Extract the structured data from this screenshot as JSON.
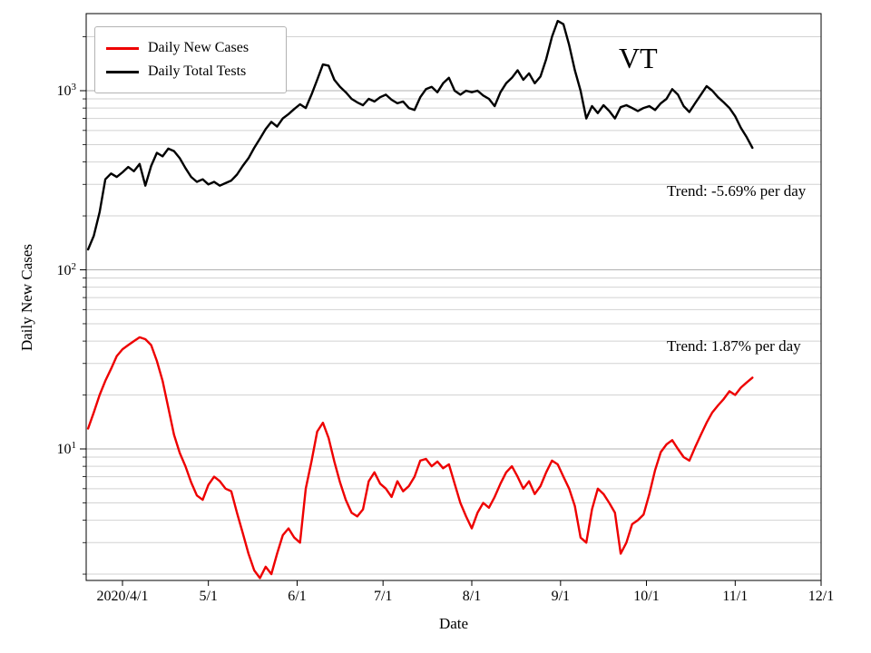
{
  "title": "VT",
  "axes": {
    "x_label": "Date",
    "y_label": "Daily New Cases",
    "x_ticks": [
      "2020/4/1",
      "5/1",
      "6/1",
      "7/1",
      "8/1",
      "9/1",
      "10/1",
      "11/1",
      "12/1"
    ],
    "y_ticks": [
      {
        "base": "10",
        "exp": "1",
        "value": 10
      },
      {
        "base": "10",
        "exp": "2",
        "value": 100
      },
      {
        "base": "10",
        "exp": "3",
        "value": 1000
      }
    ]
  },
  "legend": [
    {
      "label": "Daily New Cases",
      "color": "#ee0000"
    },
    {
      "label": "Daily Total Tests",
      "color": "#000000"
    }
  ],
  "annotations": [
    {
      "text": "Trend: -5.69% per day",
      "series": "Daily Total Tests"
    },
    {
      "text": "Trend: 1.87% per day",
      "series": "Daily New Cases"
    }
  ],
  "chart_data": {
    "type": "line",
    "title": "VT",
    "xlabel": "Date",
    "ylabel": "Daily New Cases",
    "y_scale": "log",
    "ylim": [
      1.85,
      2700
    ],
    "x_unit": "days since 2020/3/20",
    "x_tick_days": [
      12,
      42,
      73,
      103,
      134,
      165,
      195,
      226,
      256
    ],
    "x": [
      0,
      2,
      4,
      6,
      8,
      10,
      12,
      14,
      16,
      18,
      20,
      22,
      24,
      26,
      28,
      30,
      32,
      34,
      36,
      38,
      40,
      42,
      44,
      46,
      48,
      50,
      52,
      54,
      56,
      58,
      60,
      62,
      64,
      66,
      68,
      70,
      72,
      74,
      76,
      78,
      80,
      82,
      84,
      86,
      88,
      90,
      92,
      94,
      96,
      98,
      100,
      102,
      104,
      106,
      108,
      110,
      112,
      114,
      116,
      118,
      120,
      122,
      124,
      126,
      128,
      130,
      132,
      134,
      136,
      138,
      140,
      142,
      144,
      146,
      148,
      150,
      152,
      154,
      156,
      158,
      160,
      162,
      164,
      166,
      168,
      170,
      172,
      174,
      176,
      178,
      180,
      182,
      184,
      186,
      188,
      190,
      192,
      194,
      196,
      198,
      200,
      202,
      204,
      206,
      208,
      210,
      212,
      214,
      216,
      218,
      220,
      222,
      224,
      226,
      228,
      230,
      232
    ],
    "series": [
      {
        "name": "Daily New Cases",
        "color": "#ee0000",
        "values": [
          13,
          16,
          20,
          24,
          28,
          33,
          36,
          38,
          40,
          42,
          41,
          38,
          31,
          24,
          17,
          12,
          9.5,
          8,
          6.5,
          5.5,
          5.2,
          6.3,
          7,
          6.6,
          6,
          5.8,
          4.4,
          3.4,
          2.6,
          2.1,
          1.9,
          2.2,
          2,
          2.6,
          3.3,
          3.6,
          3.2,
          3,
          6,
          8.5,
          12.5,
          14,
          11.5,
          8.5,
          6.5,
          5.2,
          4.4,
          4.2,
          4.6,
          6.6,
          7.4,
          6.4,
          6,
          5.4,
          6.6,
          5.8,
          6.2,
          7,
          8.6,
          8.8,
          8,
          8.5,
          7.8,
          8.2,
          6.4,
          5,
          4.2,
          3.6,
          4.4,
          5,
          4.7,
          5.4,
          6.4,
          7.4,
          8,
          7,
          6,
          6.6,
          5.6,
          6.2,
          7.4,
          8.6,
          8.2,
          7,
          6,
          4.8,
          3.2,
          3,
          4.6,
          6,
          5.6,
          5,
          4.4,
          2.6,
          3,
          3.8,
          4,
          4.3,
          5.6,
          7.6,
          9.6,
          10.6,
          11.2,
          10,
          9,
          8.6,
          10.2,
          12,
          14,
          16,
          17.5,
          19,
          21,
          20,
          22,
          23.5,
          25
        ]
      },
      {
        "name": "Daily Total Tests",
        "color": "#000000",
        "values": [
          130,
          155,
          210,
          320,
          345,
          330,
          350,
          375,
          355,
          390,
          295,
          380,
          450,
          430,
          475,
          460,
          420,
          370,
          330,
          310,
          320,
          300,
          310,
          295,
          305,
          315,
          340,
          380,
          420,
          480,
          540,
          610,
          670,
          630,
          700,
          740,
          790,
          840,
          800,
          950,
          1150,
          1400,
          1380,
          1150,
          1050,
          980,
          900,
          860,
          830,
          900,
          870,
          920,
          950,
          890,
          850,
          870,
          800,
          780,
          920,
          1020,
          1050,
          980,
          1100,
          1180,
          1000,
          950,
          1000,
          980,
          1000,
          940,
          900,
          820,
          980,
          1100,
          1180,
          1300,
          1150,
          1250,
          1100,
          1200,
          1500,
          2000,
          2450,
          2350,
          1800,
          1300,
          1000,
          700,
          820,
          750,
          830,
          770,
          700,
          810,
          830,
          800,
          770,
          800,
          820,
          780,
          850,
          900,
          1020,
          950,
          820,
          760,
          850,
          950,
          1060,
          1000,
          920,
          860,
          800,
          720,
          620,
          550,
          480
        ]
      }
    ]
  }
}
